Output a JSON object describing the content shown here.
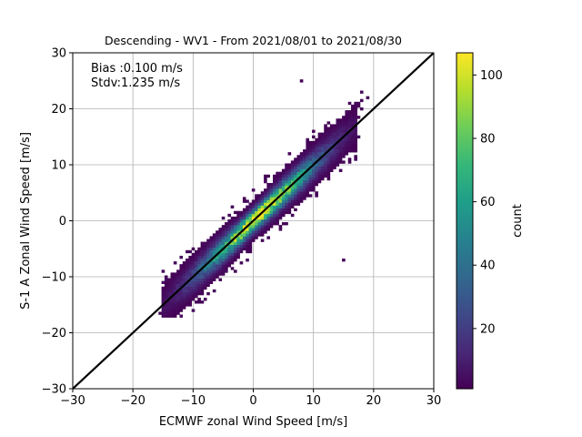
{
  "chart_data": {
    "type": "heatmap",
    "subtype": "2d-histogram-scatter-density",
    "title": "Descending - WV1 - From 2021/08/01 to 2021/08/30",
    "xlabel": "ECMWF zonal Wind Speed [m/s]",
    "ylabel": "S-1 A Zonal Wind Speed [m/s]",
    "xlim": [
      -30,
      30
    ],
    "ylim": [
      -30,
      30
    ],
    "xticks": [
      "−30",
      "−20",
      "−10",
      "0",
      "10",
      "20",
      "30"
    ],
    "yticks": [
      "−30",
      "−20",
      "−10",
      "0",
      "10",
      "20",
      "30"
    ],
    "grid": true,
    "annotations": [
      "Bias :0.100 m/s",
      "Stdv:1.235 m/s"
    ],
    "reference_line": {
      "type": "identity",
      "from": [
        -30,
        -30
      ],
      "to": [
        30,
        30
      ],
      "color": "#000000"
    },
    "colorbar": {
      "label": "count",
      "colormap": "viridis",
      "range": [
        1,
        107
      ],
      "ticks": [
        "20",
        "40",
        "60",
        "80",
        "100"
      ]
    },
    "density_summary": {
      "bias": 0.1,
      "stdv": 1.235,
      "data_x_range": [
        -16,
        21
      ],
      "data_y_range": [
        -17,
        25
      ],
      "outliers": [
        [
          8,
          25
        ],
        [
          18.8,
          22
        ],
        [
          15,
          -7.2
        ]
      ]
    }
  }
}
